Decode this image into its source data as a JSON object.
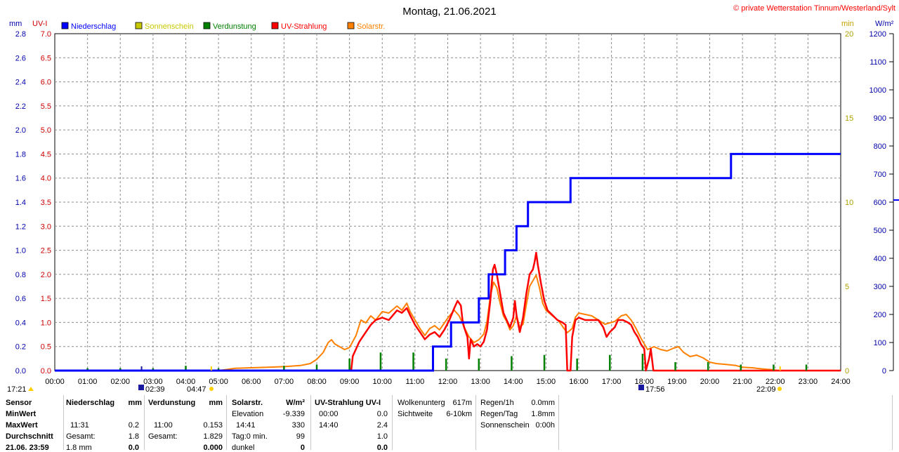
{
  "header": {
    "title": "Montag, 21.06.2021",
    "credit": "© private Wetterstation Tinnum/Westerland/Sylt"
  },
  "axes": {
    "left_outer_unit": "mm",
    "left_inner_unit": "UV-I",
    "right_inner_unit": "min",
    "right_outer_unit": "W/m²",
    "mm_ticks": [
      "0.0",
      "0.2",
      "0.4",
      "0.6",
      "0.8",
      "1.0",
      "1.2",
      "1.4",
      "1.6",
      "1.8",
      "2.0",
      "2.2",
      "2.4",
      "2.6",
      "2.8"
    ],
    "uv_ticks": [
      "0.0",
      "0.5",
      "1.0",
      "1.5",
      "2.0",
      "2.5",
      "3.0",
      "3.5",
      "4.0",
      "4.5",
      "5.0",
      "5.5",
      "6.0",
      "6.5",
      "7.0"
    ],
    "min_ticks": [
      "0",
      "5",
      "10",
      "15",
      "20"
    ],
    "wm2_ticks": [
      "0",
      "100",
      "200",
      "300",
      "400",
      "500",
      "600",
      "700",
      "800",
      "900",
      "1000",
      "1100",
      "1200"
    ],
    "x_ticks": [
      "00:00",
      "01:00",
      "02:00",
      "03:00",
      "04:00",
      "05:00",
      "06:00",
      "07:00",
      "08:00",
      "09:00",
      "10:00",
      "11:00",
      "12:00",
      "13:00",
      "14:00",
      "15:00",
      "16:00",
      "17:00",
      "18:00",
      "19:00",
      "20:00",
      "21:00",
      "22:00",
      "23:00",
      "24:00"
    ]
  },
  "legend": [
    {
      "label": "Niederschlag",
      "color": "#0000ff"
    },
    {
      "label": "Sonnenschein",
      "color": "#c8c800"
    },
    {
      "label": "Verdunstung",
      "color": "#008000"
    },
    {
      "label": "UV-Strahlung",
      "color": "#ff0000"
    },
    {
      "label": "Solarstr.",
      "color": "#ff8000"
    }
  ],
  "sun_markers": {
    "yesterday_sunset": "17:21",
    "moonrise": "02:39",
    "sunrise": "04:47",
    "moonset": "17:56",
    "sunset": "22:09"
  },
  "chart_data": {
    "type": "line",
    "title": "Montag, 21.06.2021",
    "x_range_hours": [
      0,
      24
    ],
    "series": [
      {
        "name": "Niederschlag",
        "unit": "mm",
        "ylim": [
          0,
          2.8
        ],
        "points": [
          [
            0,
            0
          ],
          [
            11.55,
            0
          ],
          [
            11.55,
            0.2
          ],
          [
            12.1,
            0.2
          ],
          [
            12.1,
            0.4
          ],
          [
            12.95,
            0.4
          ],
          [
            12.95,
            0.6
          ],
          [
            13.25,
            0.6
          ],
          [
            13.25,
            0.8
          ],
          [
            13.75,
            0.8
          ],
          [
            13.75,
            1.0
          ],
          [
            14.1,
            1.0
          ],
          [
            14.1,
            1.2
          ],
          [
            14.45,
            1.2
          ],
          [
            14.45,
            1.4
          ],
          [
            15.75,
            1.4
          ],
          [
            15.75,
            1.6
          ],
          [
            20.65,
            1.6
          ],
          [
            20.65,
            1.8
          ],
          [
            24,
            1.8
          ]
        ]
      },
      {
        "name": "Verdunstung",
        "unit": "mm",
        "ylim": [
          0,
          2.8
        ],
        "spikes": [
          [
            1,
            0.02
          ],
          [
            2,
            0.02
          ],
          [
            3,
            0.02
          ],
          [
            4,
            0.04
          ],
          [
            5,
            0.02
          ],
          [
            7,
            0.04
          ],
          [
            8,
            0.05
          ],
          [
            9,
            0.1
          ],
          [
            9.95,
            0.15
          ],
          [
            10.95,
            0.15
          ],
          [
            11.95,
            0.1
          ],
          [
            12.95,
            0.1
          ],
          [
            13.95,
            0.12
          ],
          [
            14.95,
            0.13
          ],
          [
            15.95,
            0.1
          ],
          [
            16.95,
            0.13
          ],
          [
            17.95,
            0.14
          ],
          [
            18.95,
            0.07
          ],
          [
            19.95,
            0.07
          ],
          [
            20.95,
            0.05
          ],
          [
            21.95,
            0.05
          ],
          [
            22.95,
            0.05
          ]
        ]
      },
      {
        "name": "UV-Strahlung",
        "unit": "UV-I",
        "ylim": [
          0,
          7.0
        ],
        "points": [
          [
            0,
            0
          ],
          [
            9.05,
            0
          ],
          [
            9.1,
            0.3
          ],
          [
            9.3,
            0.6
          ],
          [
            9.5,
            0.8
          ],
          [
            9.65,
            0.95
          ],
          [
            9.8,
            1.05
          ],
          [
            10.0,
            1.1
          ],
          [
            10.2,
            1.05
          ],
          [
            10.45,
            1.25
          ],
          [
            10.6,
            1.2
          ],
          [
            10.75,
            1.3
          ],
          [
            10.85,
            1.15
          ],
          [
            11.0,
            0.95
          ],
          [
            11.15,
            0.8
          ],
          [
            11.3,
            0.65
          ],
          [
            11.45,
            0.75
          ],
          [
            11.6,
            0.8
          ],
          [
            11.75,
            0.7
          ],
          [
            11.9,
            0.85
          ],
          [
            12.05,
            1.05
          ],
          [
            12.2,
            1.3
          ],
          [
            12.3,
            1.45
          ],
          [
            12.4,
            1.35
          ],
          [
            12.45,
            1.05
          ],
          [
            12.5,
            0.9
          ],
          [
            12.6,
            0.7
          ],
          [
            12.65,
            0.25
          ],
          [
            12.7,
            0.65
          ],
          [
            12.8,
            0.5
          ],
          [
            12.9,
            0.55
          ],
          [
            13.0,
            0.5
          ],
          [
            13.1,
            0.6
          ],
          [
            13.2,
            0.85
          ],
          [
            13.3,
            1.45
          ],
          [
            13.38,
            2.1
          ],
          [
            13.43,
            2.2
          ],
          [
            13.5,
            2.0
          ],
          [
            13.6,
            1.6
          ],
          [
            13.7,
            1.2
          ],
          [
            13.8,
            1.05
          ],
          [
            13.9,
            0.9
          ],
          [
            14.0,
            1.1
          ],
          [
            14.05,
            1.45
          ],
          [
            14.1,
            1.15
          ],
          [
            14.2,
            0.8
          ],
          [
            14.3,
            1.1
          ],
          [
            14.4,
            1.6
          ],
          [
            14.5,
            2.0
          ],
          [
            14.6,
            2.1
          ],
          [
            14.65,
            2.25
          ],
          [
            14.7,
            2.45
          ],
          [
            14.75,
            2.2
          ],
          [
            14.85,
            1.8
          ],
          [
            14.95,
            1.45
          ],
          [
            15.05,
            1.25
          ],
          [
            15.2,
            1.15
          ],
          [
            15.35,
            1.05
          ],
          [
            15.5,
            1.0
          ],
          [
            15.6,
            0.95
          ],
          [
            15.65,
            0.0
          ],
          [
            15.75,
            0.0
          ],
          [
            15.8,
            0.7
          ],
          [
            15.9,
            1.05
          ],
          [
            16.0,
            1.1
          ],
          [
            16.2,
            1.05
          ],
          [
            16.4,
            1.05
          ],
          [
            16.6,
            1.05
          ],
          [
            16.75,
            0.9
          ],
          [
            16.85,
            0.7
          ],
          [
            16.95,
            0.8
          ],
          [
            17.1,
            0.9
          ],
          [
            17.2,
            1.05
          ],
          [
            17.35,
            1.05
          ],
          [
            17.5,
            1.0
          ],
          [
            17.6,
            0.95
          ],
          [
            17.7,
            0.8
          ],
          [
            17.8,
            0.7
          ],
          [
            17.9,
            0.55
          ],
          [
            18.0,
            0.45
          ],
          [
            18.05,
            0.0
          ],
          [
            18.15,
            0.25
          ],
          [
            18.2,
            0.45
          ],
          [
            18.28,
            0.0
          ],
          [
            24,
            0
          ]
        ]
      },
      {
        "name": "Solarstr.",
        "unit": "W/m²",
        "ylim": [
          0,
          1200
        ],
        "points": [
          [
            0,
            0
          ],
          [
            5.0,
            0
          ],
          [
            5.2,
            3
          ],
          [
            5.5,
            8
          ],
          [
            6.0,
            10
          ],
          [
            6.5,
            12
          ],
          [
            7.0,
            14
          ],
          [
            7.5,
            18
          ],
          [
            7.8,
            25
          ],
          [
            8.0,
            40
          ],
          [
            8.2,
            65
          ],
          [
            8.35,
            100
          ],
          [
            8.45,
            110
          ],
          [
            8.55,
            95
          ],
          [
            8.7,
            85
          ],
          [
            8.85,
            75
          ],
          [
            9.0,
            82
          ],
          [
            9.2,
            125
          ],
          [
            9.35,
            180
          ],
          [
            9.5,
            170
          ],
          [
            9.65,
            195
          ],
          [
            9.8,
            180
          ],
          [
            10.0,
            210
          ],
          [
            10.2,
            205
          ],
          [
            10.45,
            230
          ],
          [
            10.6,
            215
          ],
          [
            10.75,
            240
          ],
          [
            10.85,
            210
          ],
          [
            11.0,
            180
          ],
          [
            11.15,
            150
          ],
          [
            11.3,
            125
          ],
          [
            11.45,
            150
          ],
          [
            11.6,
            160
          ],
          [
            11.75,
            145
          ],
          [
            11.9,
            170
          ],
          [
            12.05,
            195
          ],
          [
            12.2,
            215
          ],
          [
            12.35,
            195
          ],
          [
            12.5,
            155
          ],
          [
            12.65,
            120
          ],
          [
            12.8,
            100
          ],
          [
            12.95,
            110
          ],
          [
            13.1,
            130
          ],
          [
            13.2,
            175
          ],
          [
            13.3,
            265
          ],
          [
            13.4,
            315
          ],
          [
            13.5,
            295
          ],
          [
            13.6,
            240
          ],
          [
            13.7,
            195
          ],
          [
            13.8,
            175
          ],
          [
            13.9,
            145
          ],
          [
            14.0,
            160
          ],
          [
            14.1,
            195
          ],
          [
            14.2,
            155
          ],
          [
            14.3,
            165
          ],
          [
            14.4,
            235
          ],
          [
            14.5,
            300
          ],
          [
            14.6,
            320
          ],
          [
            14.7,
            340
          ],
          [
            14.8,
            295
          ],
          [
            14.9,
            240
          ],
          [
            15.0,
            215
          ],
          [
            15.2,
            195
          ],
          [
            15.4,
            175
          ],
          [
            15.55,
            150
          ],
          [
            15.65,
            135
          ],
          [
            15.8,
            150
          ],
          [
            15.9,
            190
          ],
          [
            16.0,
            205
          ],
          [
            16.2,
            200
          ],
          [
            16.4,
            195
          ],
          [
            16.6,
            180
          ],
          [
            16.8,
            165
          ],
          [
            16.95,
            170
          ],
          [
            17.1,
            175
          ],
          [
            17.3,
            195
          ],
          [
            17.45,
            200
          ],
          [
            17.6,
            180
          ],
          [
            17.75,
            150
          ],
          [
            17.9,
            115
          ],
          [
            18.0,
            95
          ],
          [
            18.1,
            75
          ],
          [
            18.3,
            85
          ],
          [
            18.5,
            75
          ],
          [
            18.7,
            70
          ],
          [
            18.9,
            80
          ],
          [
            19.05,
            85
          ],
          [
            19.2,
            65
          ],
          [
            19.4,
            50
          ],
          [
            19.6,
            55
          ],
          [
            19.8,
            45
          ],
          [
            20.0,
            30
          ],
          [
            20.2,
            25
          ],
          [
            20.5,
            22
          ],
          [
            20.8,
            18
          ],
          [
            21.0,
            12
          ],
          [
            21.3,
            10
          ],
          [
            21.6,
            6
          ],
          [
            21.9,
            3
          ],
          [
            22.1,
            0
          ],
          [
            24,
            0
          ]
        ]
      }
    ]
  },
  "table": {
    "sensor": {
      "h": "Sensor",
      "r1": "MinWert",
      "r2": "MaxWert",
      "r3": "Durchschnitt",
      "r4": "21.06. 23:59"
    },
    "nieder": {
      "h": "Niederschlag",
      "u": "mm",
      "max_t": "11:31",
      "max_v": "0.2",
      "ges_l": "Gesamt:",
      "ges_v": "1.8",
      "last_l": "1.8 mm",
      "last_v": "0.0"
    },
    "verd": {
      "h": "Verdunstung",
      "u": "mm",
      "max_t": "11:00",
      "max_v": "0.153",
      "ges_l": "Gesamt:",
      "ges_v": "1.829",
      "last_v": "0.000"
    },
    "solar": {
      "h": "Solarstr.",
      "u": "W/m²",
      "elev_l": "Elevation",
      "elev_v": "-9.339",
      "max_t": "14:41",
      "max_v": "330",
      "tag_l": "Tag:0 min.",
      "tag_v": "99",
      "dunkel": "dunkel",
      "dunkel_v": "0"
    },
    "uv": {
      "h": "UV-Strahlung UV-I",
      "min_t": "00:00",
      "min_v": "0.0",
      "max_t": "14:40",
      "max_v": "2.4",
      "avg_v": "1.0",
      "last_v": "0.0"
    },
    "wolken": {
      "l1": "Wolkenunterg",
      "v1": "617m",
      "l2": "Sichtweite",
      "v2": "6-10km"
    },
    "regen": {
      "l1": "Regen/1h",
      "v1": "0.0mm",
      "l2": "Regen/Tag",
      "v2": "1.8mm",
      "l3": "Sonnenschein",
      "v3": "0:00h"
    }
  }
}
